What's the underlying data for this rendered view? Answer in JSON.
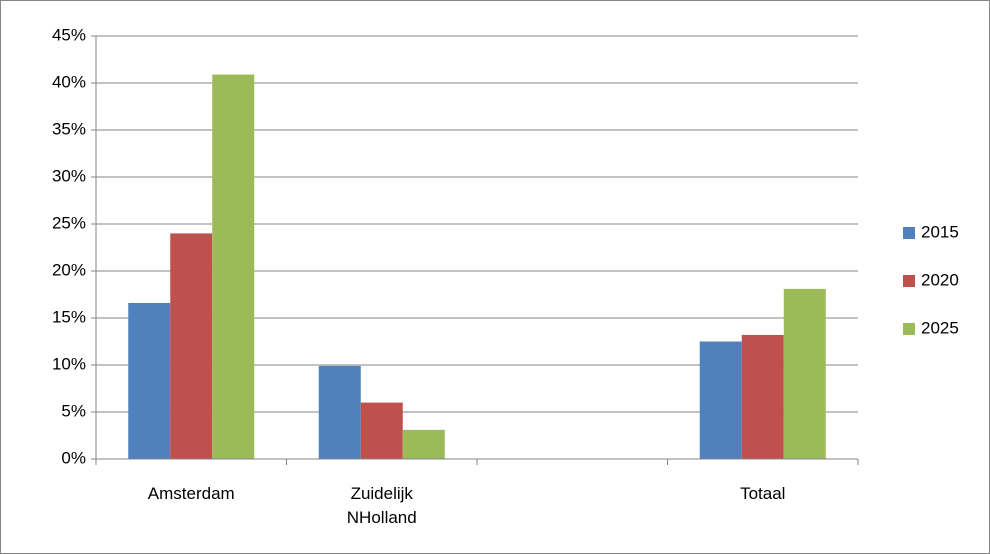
{
  "chart_data": {
    "type": "bar",
    "categories": [
      "Amsterdam",
      "Zuidelijk NHolland",
      null,
      "Totaal"
    ],
    "series": [
      {
        "name": "2015",
        "color": "#4f81bd",
        "values": [
          16.6,
          9.9,
          null,
          12.5
        ]
      },
      {
        "name": "2020",
        "color": "#c0504d",
        "values": [
          24,
          6,
          null,
          13.2
        ]
      },
      {
        "name": "2025",
        "color": "#9bbb59",
        "values": [
          40.9,
          3.1,
          null,
          18.1
        ]
      }
    ],
    "ylim": [
      0,
      45
    ],
    "yticks": [
      {
        "value": 0,
        "label": "0%"
      },
      {
        "value": 5,
        "label": "5%"
      },
      {
        "value": 10,
        "label": "10%"
      },
      {
        "value": 15,
        "label": "15%"
      },
      {
        "value": 20,
        "label": "20%"
      },
      {
        "value": 25,
        "label": "25%"
      },
      {
        "value": 30,
        "label": "30%"
      },
      {
        "value": 35,
        "label": "35%"
      },
      {
        "value": 40,
        "label": "40%"
      },
      {
        "value": 45,
        "label": "45%"
      }
    ],
    "grid": true,
    "legend": "right"
  }
}
